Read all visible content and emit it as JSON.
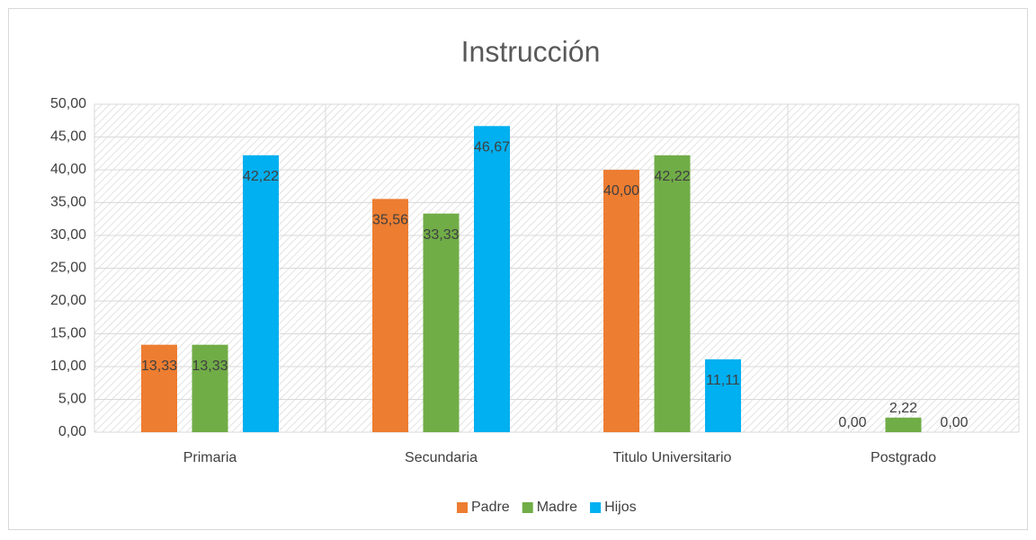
{
  "chart_data": {
    "type": "bar",
    "title": "Instrucción",
    "categories": [
      "Primaria",
      "Secundaria",
      "Titulo Universitario",
      "Postgrado"
    ],
    "series": [
      {
        "name": "Padre",
        "color": "#ed7d31",
        "values": [
          13.33,
          35.56,
          40.0,
          0.0
        ],
        "value_labels": [
          "13,33",
          "35,56",
          "40,00",
          "0,00"
        ]
      },
      {
        "name": "Madre",
        "color": "#70ad47",
        "values": [
          13.33,
          33.33,
          42.22,
          2.22
        ],
        "value_labels": [
          "13,33",
          "33,33",
          "42,22",
          "2,22"
        ]
      },
      {
        "name": "Hijos",
        "color": "#00b0f0",
        "values": [
          42.22,
          46.67,
          11.11,
          0.0
        ],
        "value_labels": [
          "42,22",
          "46,67",
          "11,11",
          "0,00"
        ]
      }
    ],
    "ylim": [
      0,
      50
    ],
    "yticks": [
      {
        "value": 0,
        "label": "0,00"
      },
      {
        "value": 5,
        "label": "5,00"
      },
      {
        "value": 10,
        "label": "10,00"
      },
      {
        "value": 15,
        "label": "15,00"
      },
      {
        "value": 20,
        "label": "20,00"
      },
      {
        "value": 25,
        "label": "25,00"
      },
      {
        "value": 30,
        "label": "30,00"
      },
      {
        "value": 35,
        "label": "35,00"
      },
      {
        "value": 40,
        "label": "40,00"
      },
      {
        "value": 45,
        "label": "45,00"
      },
      {
        "value": 50,
        "label": "50,00"
      }
    ],
    "grid": true,
    "legend": "bottom"
  }
}
